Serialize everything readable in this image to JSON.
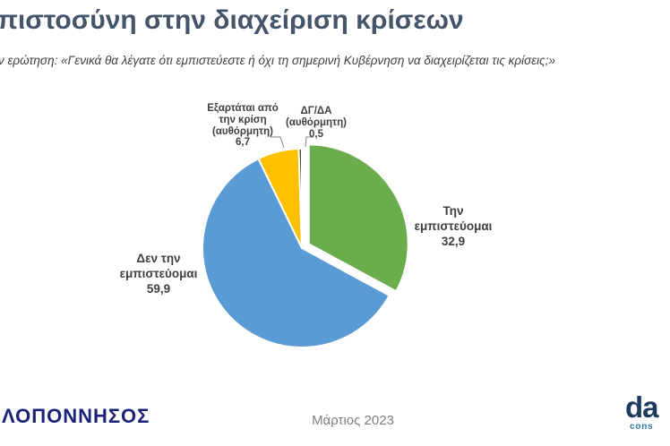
{
  "header": {
    "title": "πιστοσύνη στην διαχείριση κρίσεων",
    "subtitle": "ν ερώτηση: «Γενικά θα λέγατε ότι εμπιστεύεστε ή όχι τη σημερινή Κυβέρνηση να διαχειρίζεται τις κρίσεις;»"
  },
  "chart_data": {
    "type": "pie",
    "title": "",
    "legend": "none",
    "labels_position": "outside",
    "start_angle_deg": 0,
    "direction": "clockwise",
    "slices": [
      {
        "label": "Την εμπιστεύομαι",
        "value": 32.9,
        "display": "32,9",
        "color": "#6BAC4C",
        "exploded": true
      },
      {
        "label": "Δεν την εμπιστεύομαι",
        "value": 59.9,
        "display": "59,9",
        "color": "#5B9BD5",
        "exploded": false
      },
      {
        "label": "Εξαρτάται από την κρίση (αυθόρμητη)",
        "value": 6.7,
        "display": "6,7",
        "color": "#FFC000",
        "exploded": false
      },
      {
        "label": "ΔΓ/ΔΑ (αυθόρμητη)",
        "value": 0.5,
        "display": "0,5",
        "color": "#45511C",
        "exploded": false
      }
    ]
  },
  "labels": {
    "trust": {
      "lines": [
        "Την",
        "εμπιστεύομαι",
        "32,9"
      ]
    },
    "no_trust": {
      "lines": [
        "Δεν την",
        "εμπιστεύομαι",
        "59,9"
      ]
    },
    "depends": {
      "lines": [
        "Εξαρτάται από",
        "την κρίση",
        "(αυθόρμητη)",
        "6,7"
      ]
    },
    "dk_na": {
      "lines": [
        "ΔΓ/ΔΑ",
        "(αυθόρμητη)",
        "0,5"
      ]
    }
  },
  "footer": {
    "left_logo_text": "ΛΟΠΟΝΝΗΣΟΣ",
    "date": "Μάρτιος 2023",
    "right_logo_main": "da",
    "right_logo_sub": "cons"
  },
  "colors": {
    "title": "#44546A",
    "subtitle": "#404040",
    "label_text": "#3F3F3F",
    "leader_line": "#808080",
    "left_logo": "#1B2377",
    "date": "#7F7F7F",
    "logo_main": "#1F3A5F",
    "logo_sub": "#2E7CA6"
  }
}
